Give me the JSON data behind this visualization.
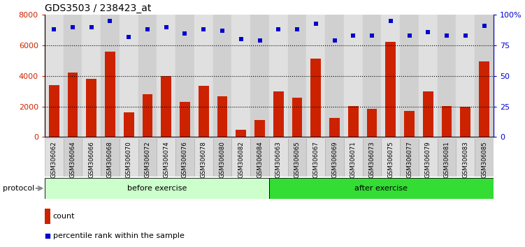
{
  "title": "GDS3503 / 238423_at",
  "samples": [
    "GSM306062",
    "GSM306064",
    "GSM306066",
    "GSM306068",
    "GSM306070",
    "GSM306072",
    "GSM306074",
    "GSM306076",
    "GSM306078",
    "GSM306080",
    "GSM306082",
    "GSM306084",
    "GSM306063",
    "GSM306065",
    "GSM306067",
    "GSM306069",
    "GSM306071",
    "GSM306073",
    "GSM306075",
    "GSM306077",
    "GSM306079",
    "GSM306081",
    "GSM306083",
    "GSM306085"
  ],
  "counts": [
    3400,
    4200,
    3800,
    5600,
    1600,
    2800,
    4000,
    2300,
    3350,
    2650,
    500,
    1100,
    3000,
    2600,
    5150,
    1250,
    2050,
    1850,
    6250,
    1700,
    3000,
    2050,
    2000,
    4950
  ],
  "percentiles": [
    88,
    90,
    90,
    95,
    82,
    88,
    90,
    85,
    88,
    87,
    80,
    79,
    88,
    88,
    93,
    79,
    83,
    83,
    95,
    83,
    86,
    83,
    83,
    91
  ],
  "group1_count": 12,
  "group2_count": 12,
  "group1_label": "before exercise",
  "group2_label": "after exercise",
  "group_label": "protocol",
  "bar_color": "#cc2200",
  "dot_color": "#0000cc",
  "group1_fill": "#ccffcc",
  "group2_fill": "#33dd33",
  "col_even": "#e0e0e0",
  "col_odd": "#d0d0d0",
  "ylim_left": [
    0,
    8000
  ],
  "ylim_right": [
    0,
    100
  ],
  "yticks_left": [
    0,
    2000,
    4000,
    6000,
    8000
  ],
  "yticks_right": [
    0,
    25,
    50,
    75,
    100
  ],
  "ytick_labels_right": [
    "0",
    "25",
    "50",
    "75",
    "100%"
  ],
  "grid_lines": [
    2000,
    4000,
    6000
  ],
  "legend_count_label": "count",
  "legend_pct_label": "percentile rank within the sample",
  "background_color": "#ffffff",
  "title_fontsize": 10,
  "tick_fontsize": 8,
  "label_fontsize": 8
}
